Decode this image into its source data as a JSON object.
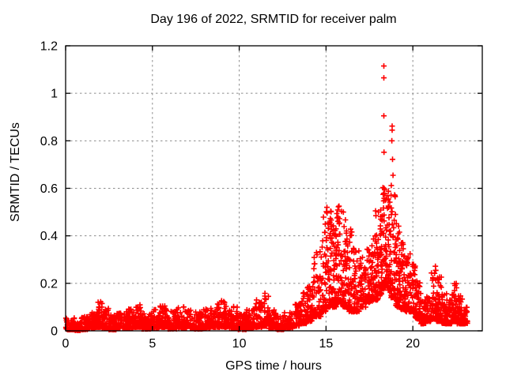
{
  "chart_data": {
    "type": "scatter",
    "title": "Day 196 of 2022, SRMTID for receiver palm",
    "xlabel": "GPS time / hours",
    "ylabel": "SRMTID / TECUs",
    "xlim": [
      0,
      24
    ],
    "ylim": [
      0,
      1.2
    ],
    "xticks": {
      "values": [
        0,
        5,
        10,
        15,
        20
      ],
      "labels": [
        "0",
        "5",
        "10",
        "15",
        "20"
      ]
    },
    "yticks": {
      "values": [
        0,
        0.2,
        0.4,
        0.6,
        0.8,
        1,
        1.2
      ],
      "labels": [
        "0",
        "0.2",
        "0.4",
        "0.6",
        "0.8",
        "1",
        "1.2"
      ]
    },
    "grid": true,
    "legend": "none",
    "marker": {
      "shape": "plus",
      "color": "#ff0000"
    },
    "series": [
      {
        "name": "SRMTID",
        "description": "Dense 30s-cadence scatter; quiet band ~0.01-0.12 TECU from 0-13h, rise after 13.5h, spiky 0.1-0.53 activity 15-18h, extreme peak cluster 18.3-18.9h (max 1.11), decay to ~0.05-0.2 by 23h; data ends ~23.15h",
        "peak_points": [
          [
            18.33,
            1.115
          ],
          [
            18.33,
            1.065
          ],
          [
            18.33,
            0.905
          ],
          [
            18.81,
            0.862
          ],
          [
            18.81,
            0.845
          ],
          [
            18.79,
            0.8
          ],
          [
            18.34,
            0.752
          ],
          [
            18.83,
            0.722
          ],
          [
            18.86,
            0.655
          ],
          [
            18.76,
            0.612
          ],
          [
            18.35,
            0.6
          ],
          [
            18.95,
            0.572
          ],
          [
            18.6,
            0.555
          ],
          [
            15.05,
            0.52
          ],
          [
            15.75,
            0.525
          ],
          [
            16.0,
            0.5
          ],
          [
            17.85,
            0.505
          ],
          [
            11.48,
            0.158
          ],
          [
            21.3,
            0.272
          ],
          [
            22.5,
            0.198
          ]
        ],
        "band_segments": [
          [
            0.0,
            0.5,
            0.005,
            0.055,
            60
          ],
          [
            0.5,
            0.9,
            0.002,
            0.04,
            50
          ],
          [
            0.9,
            1.3,
            0.005,
            0.06,
            50
          ],
          [
            1.3,
            1.7,
            0.01,
            0.08,
            55
          ],
          [
            1.7,
            2.1,
            0.015,
            0.125,
            60
          ],
          [
            2.1,
            2.5,
            0.01,
            0.1,
            55
          ],
          [
            2.5,
            2.9,
            0.005,
            0.07,
            55
          ],
          [
            2.9,
            3.4,
            0.01,
            0.08,
            60
          ],
          [
            3.4,
            3.9,
            0.01,
            0.095,
            60
          ],
          [
            3.9,
            4.4,
            0.015,
            0.11,
            60
          ],
          [
            4.4,
            4.9,
            0.008,
            0.08,
            60
          ],
          [
            4.9,
            5.4,
            0.01,
            0.09,
            60
          ],
          [
            5.4,
            5.9,
            0.015,
            0.105,
            60
          ],
          [
            5.9,
            6.4,
            0.008,
            0.085,
            60
          ],
          [
            6.4,
            6.9,
            0.01,
            0.11,
            60
          ],
          [
            6.9,
            7.4,
            0.01,
            0.09,
            60
          ],
          [
            7.4,
            7.9,
            0.008,
            0.08,
            60
          ],
          [
            7.9,
            8.4,
            0.01,
            0.1,
            60
          ],
          [
            8.4,
            8.9,
            0.015,
            0.12,
            60
          ],
          [
            8.9,
            9.4,
            0.015,
            0.14,
            60
          ],
          [
            9.4,
            9.9,
            0.01,
            0.11,
            60
          ],
          [
            9.9,
            10.4,
            0.006,
            0.07,
            60
          ],
          [
            10.4,
            10.9,
            0.01,
            0.09,
            60
          ],
          [
            10.9,
            11.3,
            0.015,
            0.13,
            50
          ],
          [
            11.3,
            11.7,
            0.02,
            0.16,
            50
          ],
          [
            11.7,
            12.1,
            0.01,
            0.09,
            50
          ],
          [
            12.1,
            12.6,
            0.006,
            0.07,
            55
          ],
          [
            12.6,
            13.1,
            0.01,
            0.085,
            55
          ],
          [
            13.1,
            13.5,
            0.02,
            0.115,
            45
          ],
          [
            13.5,
            13.9,
            0.03,
            0.165,
            45
          ],
          [
            13.9,
            14.3,
            0.04,
            0.24,
            50
          ],
          [
            14.3,
            14.7,
            0.06,
            0.34,
            55
          ],
          [
            14.7,
            15.0,
            0.08,
            0.48,
            50
          ],
          [
            15.0,
            15.3,
            0.1,
            0.53,
            55
          ],
          [
            15.3,
            15.6,
            0.1,
            0.46,
            55
          ],
          [
            15.6,
            15.9,
            0.12,
            0.53,
            55
          ],
          [
            15.9,
            16.2,
            0.1,
            0.49,
            55
          ],
          [
            16.2,
            16.5,
            0.08,
            0.45,
            50
          ],
          [
            16.5,
            16.9,
            0.08,
            0.36,
            55
          ],
          [
            16.9,
            17.3,
            0.1,
            0.31,
            55
          ],
          [
            17.3,
            17.7,
            0.12,
            0.36,
            55
          ],
          [
            17.7,
            18.0,
            0.13,
            0.5,
            50
          ],
          [
            18.0,
            18.25,
            0.15,
            0.56,
            45
          ],
          [
            18.25,
            18.5,
            0.18,
            0.62,
            48
          ],
          [
            18.5,
            18.75,
            0.17,
            0.6,
            45
          ],
          [
            18.75,
            19.0,
            0.14,
            0.58,
            48
          ],
          [
            19.0,
            19.25,
            0.1,
            0.47,
            45
          ],
          [
            19.25,
            19.55,
            0.09,
            0.38,
            50
          ],
          [
            19.55,
            19.85,
            0.08,
            0.34,
            50
          ],
          [
            19.85,
            20.15,
            0.08,
            0.28,
            50
          ],
          [
            20.15,
            20.45,
            0.05,
            0.21,
            50
          ],
          [
            20.45,
            20.75,
            0.03,
            0.14,
            48
          ],
          [
            20.75,
            21.05,
            0.04,
            0.15,
            45
          ],
          [
            21.05,
            21.35,
            0.05,
            0.27,
            45
          ],
          [
            21.35,
            21.65,
            0.04,
            0.23,
            45
          ],
          [
            21.65,
            21.95,
            0.03,
            0.16,
            45
          ],
          [
            21.95,
            22.25,
            0.03,
            0.13,
            45
          ],
          [
            22.25,
            22.55,
            0.04,
            0.2,
            45
          ],
          [
            22.55,
            22.85,
            0.03,
            0.15,
            45
          ],
          [
            22.85,
            23.15,
            0.03,
            0.1,
            40
          ]
        ]
      }
    ]
  },
  "colors": {
    "background": "#ffffff",
    "axis": "#000000",
    "grid": "#8c8c8c",
    "marker": "#ff0000",
    "text": "#000000"
  }
}
